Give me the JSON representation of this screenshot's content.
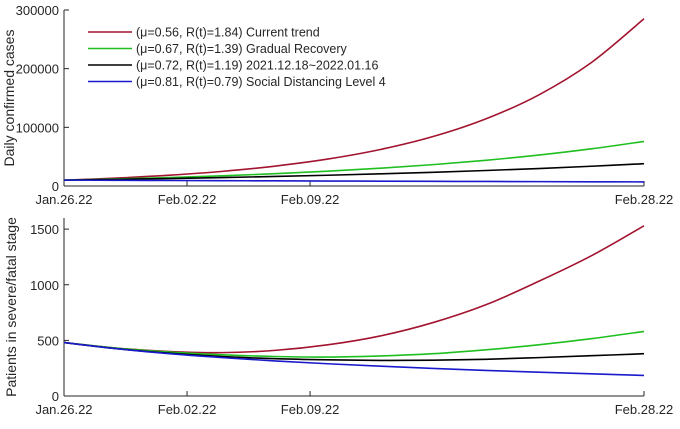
{
  "chart_data": [
    {
      "type": "line",
      "title": "",
      "xlabel": "",
      "ylabel": "Daily confirmed cases",
      "x_unit": "days since Jan.26.22",
      "xlim": [
        0,
        33
      ],
      "ylim": [
        0,
        300000
      ],
      "x_ticks": [
        {
          "v": 0,
          "label": "Jan.26.22"
        },
        {
          "v": 7,
          "label": "Feb.02.22"
        },
        {
          "v": 14,
          "label": "Feb.09.22"
        },
        {
          "v": 33,
          "label": "Feb.28.22"
        }
      ],
      "y_ticks": [
        {
          "v": 0,
          "label": "0"
        },
        {
          "v": 100000,
          "label": "100000"
        },
        {
          "v": 200000,
          "label": "200000"
        },
        {
          "v": 300000,
          "label": "300000"
        }
      ],
      "legend_position": "top-left",
      "grid": false,
      "x": [
        0,
        3,
        6,
        9,
        12,
        15,
        18,
        21,
        24,
        27,
        30,
        33
      ],
      "series": [
        {
          "name": "(μ=0.56, R(t)=1.84) Current trend",
          "color": "#a2142f",
          "values": [
            10000,
            13560,
            18390,
            24940,
            33820,
            45860,
            62190,
            84330,
            114360,
            155080,
            210300,
            285000
          ]
        },
        {
          "name": "(μ=0.67, R(t)=1.39) Gradual Recovery",
          "color": "#1fbf1f",
          "values": [
            10000,
            12030,
            14470,
            17400,
            20930,
            25170,
            30280,
            36420,
            43800,
            52680,
            63370,
            76000
          ]
        },
        {
          "name": "(μ=0.72, R(t)=1.19) 2021.12.18~2022.01.16",
          "color": "#000000",
          "values": [
            10000,
            11290,
            12750,
            14390,
            16250,
            18340,
            20710,
            23380,
            26400,
            29800,
            33650,
            38000
          ]
        },
        {
          "name": "(μ=0.81, R(t)=0.79) Social Distancing Level 4",
          "color": "#1a1acc",
          "values": [
            10000,
            9680,
            9370,
            9070,
            8780,
            8500,
            8230,
            7960,
            7710,
            7460,
            7220,
            7000
          ]
        }
      ]
    },
    {
      "type": "line",
      "title": "",
      "xlabel": "",
      "ylabel": "Patients in severe/fatal stage",
      "x_unit": "days since Jan.26.22",
      "xlim": [
        0,
        33
      ],
      "ylim": [
        0,
        1600
      ],
      "x_ticks": [
        {
          "v": 0,
          "label": "Jan.26.22"
        },
        {
          "v": 7,
          "label": "Feb.02.22"
        },
        {
          "v": 14,
          "label": "Feb.09.22"
        },
        {
          "v": 33,
          "label": "Feb.28.22"
        }
      ],
      "y_ticks": [
        {
          "v": 0,
          "label": "0"
        },
        {
          "v": 500,
          "label": "500"
        },
        {
          "v": 1000,
          "label": "1000"
        },
        {
          "v": 1500,
          "label": "1500"
        }
      ],
      "grid": false,
      "x": [
        0,
        3,
        6,
        9,
        12,
        15,
        18,
        21,
        24,
        27,
        30,
        33
      ],
      "series": [
        {
          "name": "Current trend",
          "color": "#a2142f",
          "values": [
            480,
            430,
            400,
            390,
            410,
            460,
            540,
            660,
            820,
            1030,
            1260,
            1530
          ]
        },
        {
          "name": "Gradual Recovery",
          "color": "#1fbf1f",
          "values": [
            480,
            430,
            395,
            370,
            355,
            350,
            360,
            380,
            415,
            460,
            515,
            580
          ]
        },
        {
          "name": "2021.12.18~2022.01.16",
          "color": "#000000",
          "values": [
            480,
            425,
            385,
            355,
            335,
            325,
            320,
            322,
            330,
            345,
            362,
            380
          ]
        },
        {
          "name": "Social Distancing Level 4",
          "color": "#1a1acc",
          "values": [
            480,
            425,
            380,
            345,
            315,
            290,
            268,
            248,
            230,
            214,
            199,
            185
          ]
        }
      ]
    }
  ]
}
